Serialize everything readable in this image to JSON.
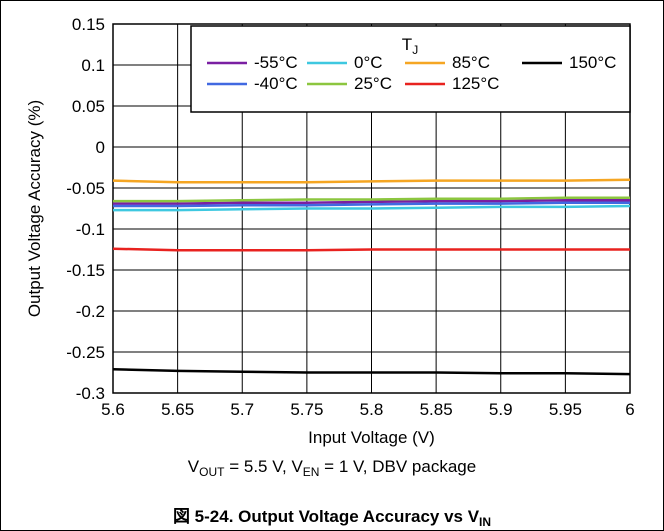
{
  "chart_data": {
    "type": "line",
    "xlabel": "Input Voltage (V)",
    "ylabel": "Output Voltage Accuracy (%)",
    "xlim": [
      5.6,
      6
    ],
    "ylim": [
      -0.3,
      0.15
    ],
    "x_ticks": [
      "5.6",
      "5.65",
      "5.7",
      "5.75",
      "5.8",
      "5.85",
      "5.9",
      "5.95",
      "6"
    ],
    "y_ticks": [
      "0.15",
      "0.1",
      "0.05",
      "0",
      "-0.05",
      "-0.1",
      "-0.15",
      "-0.2",
      "-0.25",
      "-0.3"
    ],
    "x_tick_values": [
      5.6,
      5.65,
      5.7,
      5.75,
      5.8,
      5.85,
      5.9,
      5.95,
      6
    ],
    "y_tick_values": [
      0.15,
      0.1,
      0.05,
      0,
      -0.05,
      -0.1,
      -0.15,
      -0.2,
      -0.25,
      -0.3
    ],
    "grid": true,
    "legend_title": "T",
    "legend_title_sub": "J",
    "legend_placement": "top-right",
    "x": [
      5.6,
      5.65,
      5.7,
      5.75,
      5.8,
      5.85,
      5.9,
      5.95,
      6
    ],
    "series": [
      {
        "name": "-55°C",
        "color": "#7a1fa2",
        "values": [
          -0.069,
          -0.069,
          -0.068,
          -0.068,
          -0.067,
          -0.066,
          -0.066,
          -0.065,
          -0.065
        ]
      },
      {
        "name": "-40°C",
        "color": "#4169e1",
        "values": [
          -0.072,
          -0.072,
          -0.071,
          -0.071,
          -0.07,
          -0.069,
          -0.069,
          -0.068,
          -0.068
        ]
      },
      {
        "name": "0°C",
        "color": "#3ec8e0",
        "values": [
          -0.077,
          -0.077,
          -0.076,
          -0.075,
          -0.075,
          -0.074,
          -0.073,
          -0.073,
          -0.072
        ]
      },
      {
        "name": "25°C",
        "color": "#8cc63f",
        "values": [
          -0.066,
          -0.066,
          -0.065,
          -0.064,
          -0.064,
          -0.063,
          -0.063,
          -0.062,
          -0.062
        ]
      },
      {
        "name": "85°C",
        "color": "#f5a623",
        "values": [
          -0.041,
          -0.043,
          -0.043,
          -0.043,
          -0.042,
          -0.041,
          -0.041,
          -0.041,
          -0.04
        ]
      },
      {
        "name": "125°C",
        "color": "#e8221f",
        "values": [
          -0.124,
          -0.126,
          -0.126,
          -0.126,
          -0.125,
          -0.125,
          -0.125,
          -0.125,
          -0.125
        ]
      },
      {
        "name": "150°C",
        "color": "#000000",
        "values": [
          -0.271,
          -0.273,
          -0.274,
          -0.275,
          -0.275,
          -0.275,
          -0.276,
          -0.276,
          -0.277
        ]
      }
    ],
    "legend_rows": [
      [
        "-55°C",
        "0°C",
        "85°C",
        "150°C"
      ],
      [
        "-40°C",
        "25°C",
        "125°C"
      ]
    ]
  },
  "caption": {
    "v_out_label": "V",
    "v_out_sub": "OUT",
    "v_out_rest": " = 5.5 V, V",
    "v_en_sub": "EN",
    "v_en_rest": " = 1 V, DBV package"
  },
  "figure_title": {
    "text": "図 5-24. Output Voltage Accuracy vs V",
    "sub": "IN"
  }
}
